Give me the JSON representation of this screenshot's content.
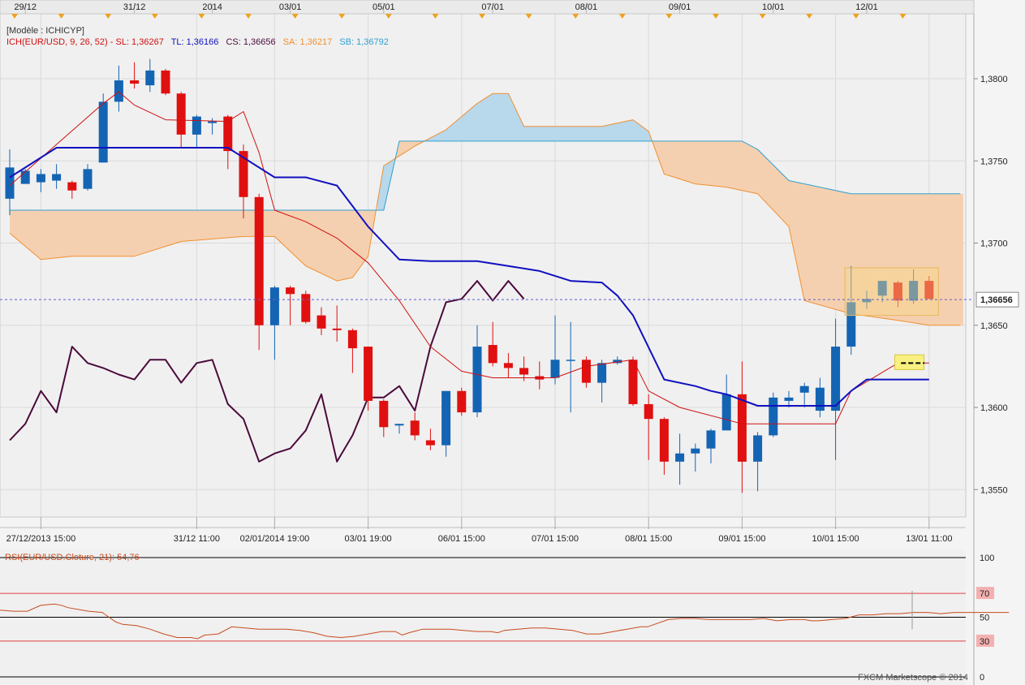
{
  "header": {
    "model_label": "[Modèle : ICHICYP]",
    "ich_prefix": "ICH(EUR/USD, 9, 26, 52) - ",
    "sl": "SL: 1,36267",
    "tl": "TL: 1,36166",
    "cs": "CS: 1,36656",
    "sa": "SA: 1,36217",
    "sb": "SB: 1,36792"
  },
  "rsi_label": "RSI(EUR/USD.Cloture, 21): 54,76",
  "copyright": "FXCM Marketscope © 2014",
  "colors": {
    "bull": "#1464b4",
    "bear": "#e01010",
    "tenkan": "#d01010",
    "kijun": "#1010c0",
    "chikou": "#4a0a3a",
    "senkou_a": "#f09030",
    "senkou_b": "#30a0d0",
    "cloud_bull": "#b8d8ec",
    "cloud_bear": "#f5d0b0",
    "rsi": "#c84b1e",
    "marker": "#f0a020"
  },
  "chart_data": {
    "type": "candlestick",
    "instrument": "EUR/USD",
    "price_axis": {
      "ticks": [
        "1,3800",
        "1,3750",
        "1,3700",
        "1,3650",
        "1,3600",
        "1,3550"
      ],
      "values": [
        1.38,
        1.375,
        1.37,
        1.365,
        1.36,
        1.355
      ],
      "current_price_label": "1,36656",
      "current_price": 1.36656
    },
    "time_axis_bottom": [
      {
        "label": "27/12/2013 15:00",
        "bar": 2
      },
      {
        "label": "31/12 11:00",
        "bar": 12
      },
      {
        "label": "02/01/2014 19:00",
        "bar": 17
      },
      {
        "label": "03/01 19:00",
        "bar": 23
      },
      {
        "label": "06/01 15:00",
        "bar": 29
      },
      {
        "label": "07/01 15:00",
        "bar": 35
      },
      {
        "label": "08/01 15:00",
        "bar": 41
      },
      {
        "label": "09/01 15:00",
        "bar": 47
      },
      {
        "label": "10/01 15:00",
        "bar": 53
      },
      {
        "label": "13/01 11:00",
        "bar": 59
      }
    ],
    "time_axis_top": [
      {
        "label": "29/12",
        "bar": 1
      },
      {
        "label": "31/12",
        "bar": 8
      },
      {
        "label": "2014",
        "bar": 13
      },
      {
        "label": "03/01",
        "bar": 18
      },
      {
        "label": "05/01",
        "bar": 24
      },
      {
        "label": "07/01",
        "bar": 31
      },
      {
        "label": "08/01",
        "bar": 37
      },
      {
        "label": "09/01",
        "bar": 43
      },
      {
        "label": "10/01",
        "bar": 49
      },
      {
        "label": "12/01",
        "bar": 55
      }
    ],
    "candles": [
      [
        1.3727,
        1.3746,
        1.3717,
        1.3757
      ],
      [
        1.3736,
        1.3744,
        1.3736,
        1.3745
      ],
      [
        1.3737,
        1.3742,
        1.3731,
        1.3745
      ],
      [
        1.3738,
        1.3742,
        1.3733,
        1.3748
      ],
      [
        1.3737,
        1.3732,
        1.3727,
        1.3738
      ],
      [
        1.3733,
        1.3745,
        1.3732,
        1.3748
      ],
      [
        1.3749,
        1.3786,
        1.3749,
        1.3791
      ],
      [
        1.3786,
        1.3799,
        1.378,
        1.3808
      ],
      [
        1.3799,
        1.3797,
        1.3794,
        1.381
      ],
      [
        1.3796,
        1.3805,
        1.3792,
        1.3812
      ],
      [
        1.3805,
        1.3791,
        1.379,
        1.3806
      ],
      [
        1.3791,
        1.3766,
        1.3758,
        1.3792
      ],
      [
        1.3766,
        1.3777,
        1.3758,
        1.3778
      ],
      [
        1.3773,
        1.3774,
        1.3766,
        1.3776
      ],
      [
        1.3777,
        1.3756,
        1.3745,
        1.3778
      ],
      [
        1.3756,
        1.3728,
        1.3715,
        1.376
      ],
      [
        1.3728,
        1.365,
        1.3635,
        1.373
      ],
      [
        1.365,
        1.3673,
        1.3629,
        1.3674
      ],
      [
        1.3673,
        1.3669,
        1.365,
        1.3674
      ],
      [
        1.3669,
        1.3652,
        1.3651,
        1.3671
      ],
      [
        1.3656,
        1.3648,
        1.3644,
        1.3661
      ],
      [
        1.3648,
        1.3647,
        1.364,
        1.3662
      ],
      [
        1.3647,
        1.3636,
        1.3621,
        1.3648
      ],
      [
        1.3637,
        1.3604,
        1.3598,
        1.3637
      ],
      [
        1.3604,
        1.3588,
        1.3582,
        1.3605
      ],
      [
        1.3589,
        1.359,
        1.3584,
        1.359
      ],
      [
        1.3592,
        1.3583,
        1.358,
        1.3597
      ],
      [
        1.358,
        1.3577,
        1.3574,
        1.3587
      ],
      [
        1.3577,
        1.361,
        1.357,
        1.361
      ],
      [
        1.361,
        1.3597,
        1.3595,
        1.3612
      ],
      [
        1.3597,
        1.3637,
        1.3594,
        1.365
      ],
      [
        1.3638,
        1.3627,
        1.3625,
        1.3652
      ],
      [
        1.3627,
        1.3624,
        1.3618,
        1.3633
      ],
      [
        1.3624,
        1.362,
        1.3616,
        1.3631
      ],
      [
        1.3619,
        1.3617,
        1.3611,
        1.3628
      ],
      [
        1.3618,
        1.3629,
        1.3614,
        1.3656
      ],
      [
        1.3629,
        1.3629,
        1.3597,
        1.3652
      ],
      [
        1.3629,
        1.3615,
        1.3612,
        1.3631
      ],
      [
        1.3615,
        1.3627,
        1.3603,
        1.3629
      ],
      [
        1.3627,
        1.3629,
        1.3626,
        1.3631
      ],
      [
        1.3629,
        1.3602,
        1.3601,
        1.3631
      ],
      [
        1.3602,
        1.3593,
        1.3568,
        1.3608
      ],
      [
        1.3593,
        1.3567,
        1.3559,
        1.3594
      ],
      [
        1.3567,
        1.3572,
        1.3553,
        1.3584
      ],
      [
        1.3572,
        1.3575,
        1.3561,
        1.3578
      ],
      [
        1.3575,
        1.3586,
        1.3566,
        1.3587
      ],
      [
        1.3586,
        1.3608,
        1.3587,
        1.362
      ],
      [
        1.3608,
        1.3567,
        1.3548,
        1.3628
      ],
      [
        1.3567,
        1.3583,
        1.3549,
        1.3585
      ],
      [
        1.3583,
        1.3606,
        1.3582,
        1.3609
      ],
      [
        1.3604,
        1.3606,
        1.36,
        1.361
      ],
      [
        1.3609,
        1.3613,
        1.36,
        1.3615
      ],
      [
        1.3598,
        1.3612,
        1.3594,
        1.3618
      ],
      [
        1.3598,
        1.3637,
        1.3568,
        1.3654
      ],
      [
        1.3637,
        1.3664,
        1.3632,
        1.3686
      ],
      [
        1.3664,
        1.3666,
        1.366,
        1.3671
      ],
      [
        1.3668,
        1.3677,
        1.3664,
        1.3677
      ],
      [
        1.3676,
        1.3665,
        1.3661,
        1.3677
      ],
      [
        1.3665,
        1.3677,
        1.3663,
        1.3684
      ],
      [
        1.3677,
        1.3666,
        1.3666,
        1.368
      ]
    ],
    "tenkan": [
      [
        0,
        1.3735
      ],
      [
        6,
        1.3785
      ],
      [
        7,
        1.3792
      ],
      [
        8,
        1.3784
      ],
      [
        10,
        1.3775
      ],
      [
        14,
        1.3774
      ],
      [
        15,
        1.378
      ],
      [
        16,
        1.3755
      ],
      [
        17,
        1.372
      ],
      [
        19,
        1.3713
      ],
      [
        21,
        1.3703
      ],
      [
        23,
        1.3688
      ],
      [
        25,
        1.3665
      ],
      [
        27,
        1.3637
      ],
      [
        29,
        1.3622
      ],
      [
        31,
        1.3618
      ],
      [
        35,
        1.3618
      ],
      [
        37,
        1.3625
      ],
      [
        40,
        1.3629
      ],
      [
        41,
        1.361
      ],
      [
        43,
        1.36
      ],
      [
        47,
        1.359
      ],
      [
        49,
        1.359
      ],
      [
        53,
        1.359
      ],
      [
        54,
        1.361
      ],
      [
        57,
        1.3627
      ],
      [
        59,
        1.3627
      ]
    ],
    "kijun": [
      [
        0,
        1.374
      ],
      [
        3,
        1.3758
      ],
      [
        14,
        1.3758
      ],
      [
        15,
        1.3752
      ],
      [
        17,
        1.374
      ],
      [
        19,
        1.374
      ],
      [
        21,
        1.3735
      ],
      [
        23,
        1.371
      ],
      [
        24,
        1.37
      ],
      [
        25,
        1.369
      ],
      [
        27,
        1.3689
      ],
      [
        30,
        1.3689
      ],
      [
        32,
        1.3686
      ],
      [
        34,
        1.3683
      ],
      [
        36,
        1.3677
      ],
      [
        38,
        1.3676
      ],
      [
        39,
        1.3668
      ],
      [
        40,
        1.3656
      ],
      [
        42,
        1.3617
      ],
      [
        44,
        1.3613
      ],
      [
        45,
        1.361
      ],
      [
        46,
        1.3608
      ],
      [
        48,
        1.3601
      ],
      [
        52,
        1.3601
      ],
      [
        53,
        1.3601
      ],
      [
        54,
        1.361
      ],
      [
        55,
        1.3617
      ],
      [
        59,
        1.3617
      ]
    ],
    "chikou": [
      [
        0,
        1.358
      ],
      [
        1,
        1.359
      ],
      [
        2,
        1.361
      ],
      [
        3,
        1.3597
      ],
      [
        4,
        1.3637
      ],
      [
        5,
        1.3627
      ],
      [
        6,
        1.3624
      ],
      [
        7,
        1.362
      ],
      [
        8,
        1.3617
      ],
      [
        9,
        1.3629
      ],
      [
        10,
        1.3629
      ],
      [
        11,
        1.3615
      ],
      [
        12,
        1.3627
      ],
      [
        13,
        1.3629
      ],
      [
        14,
        1.3602
      ],
      [
        15,
        1.3593
      ],
      [
        16,
        1.3567
      ],
      [
        17,
        1.3572
      ],
      [
        18,
        1.3575
      ],
      [
        19,
        1.3586
      ],
      [
        20,
        1.3608
      ],
      [
        21,
        1.3567
      ],
      [
        22,
        1.3583
      ],
      [
        23,
        1.3606
      ],
      [
        24,
        1.3606
      ],
      [
        25,
        1.3613
      ],
      [
        26,
        1.3598
      ],
      [
        27,
        1.3637
      ],
      [
        28,
        1.3664
      ],
      [
        29,
        1.3666
      ],
      [
        30,
        1.3677
      ],
      [
        31,
        1.3665
      ],
      [
        32,
        1.3677
      ],
      [
        33,
        1.3666
      ]
    ],
    "senkou_a": [
      [
        0,
        1.3706
      ],
      [
        2,
        1.369
      ],
      [
        4,
        1.3692
      ],
      [
        8,
        1.3692
      ],
      [
        11,
        1.3701
      ],
      [
        15,
        1.3704
      ],
      [
        17,
        1.3704
      ],
      [
        19,
        1.3686
      ],
      [
        21,
        1.3677
      ],
      [
        22,
        1.3679
      ],
      [
        23,
        1.3692
      ],
      [
        24,
        1.3747
      ],
      [
        26,
        1.3759
      ],
      [
        28,
        1.3769
      ],
      [
        30,
        1.3785
      ],
      [
        31,
        1.3791
      ],
      [
        32,
        1.3791
      ],
      [
        33,
        1.3771
      ],
      [
        38,
        1.3771
      ],
      [
        40,
        1.3775
      ],
      [
        41,
        1.3768
      ],
      [
        42,
        1.3742
      ],
      [
        44,
        1.3736
      ],
      [
        46,
        1.3734
      ],
      [
        48,
        1.373
      ],
      [
        50,
        1.371
      ],
      [
        51,
        1.3665
      ],
      [
        54,
        1.3657
      ],
      [
        57,
        1.3653
      ],
      [
        59,
        1.365
      ],
      [
        61,
        1.365
      ]
    ],
    "senkou_b": [
      [
        0,
        1.372
      ],
      [
        24,
        1.372
      ],
      [
        25,
        1.3762
      ],
      [
        47,
        1.3762
      ],
      [
        48,
        1.3757
      ],
      [
        50,
        1.3738
      ],
      [
        53,
        1.3732
      ],
      [
        54,
        1.373
      ],
      [
        61,
        1.373
      ]
    ],
    "rsi": {
      "ticks": [
        "100",
        "70",
        "50",
        "30",
        "0"
      ],
      "levels": [
        100,
        70,
        50,
        30,
        0
      ],
      "values": [
        [
          0,
          56
        ],
        [
          2,
          55
        ],
        [
          4,
          55
        ],
        [
          6,
          60
        ],
        [
          8,
          61
        ],
        [
          9,
          60
        ],
        [
          10,
          58
        ],
        [
          13,
          55
        ],
        [
          15,
          54
        ],
        [
          17,
          46
        ],
        [
          18,
          44
        ],
        [
          20,
          43
        ],
        [
          22,
          40
        ],
        [
          24,
          36
        ],
        [
          26,
          33
        ],
        [
          28,
          33
        ],
        [
          29,
          32
        ],
        [
          30,
          35
        ],
        [
          32,
          36
        ],
        [
          34,
          42
        ],
        [
          36,
          41
        ],
        [
          38,
          40
        ],
        [
          40,
          40
        ],
        [
          42,
          40
        ],
        [
          44,
          39
        ],
        [
          46,
          37
        ],
        [
          48,
          34
        ],
        [
          50,
          33
        ],
        [
          52,
          34
        ],
        [
          54,
          36
        ],
        [
          56,
          38
        ],
        [
          58,
          38
        ],
        [
          59,
          35
        ],
        [
          60,
          37
        ],
        [
          62,
          40
        ],
        [
          64,
          40
        ],
        [
          66,
          40
        ],
        [
          68,
          39
        ],
        [
          70,
          38
        ],
        [
          72,
          38
        ],
        [
          73,
          37
        ],
        [
          74,
          39
        ],
        [
          76,
          40
        ],
        [
          78,
          41
        ],
        [
          80,
          41
        ],
        [
          82,
          40
        ],
        [
          84,
          39
        ],
        [
          86,
          36
        ],
        [
          88,
          36
        ],
        [
          90,
          38
        ],
        [
          92,
          40
        ],
        [
          94,
          42
        ],
        [
          95,
          42
        ],
        [
          96,
          44
        ],
        [
          98,
          48
        ],
        [
          100,
          49
        ],
        [
          102,
          49
        ],
        [
          104,
          48
        ],
        [
          106,
          48
        ],
        [
          108,
          48
        ],
        [
          110,
          48
        ],
        [
          112,
          49
        ],
        [
          114,
          47
        ],
        [
          116,
          48
        ],
        [
          118,
          48
        ],
        [
          119,
          47
        ],
        [
          120,
          47
        ],
        [
          122,
          48
        ],
        [
          124,
          49
        ],
        [
          126,
          52
        ],
        [
          128,
          52
        ],
        [
          130,
          53
        ],
        [
          132,
          53
        ],
        [
          134,
          54
        ],
        [
          136,
          54
        ],
        [
          138,
          53
        ],
        [
          140,
          54
        ],
        [
          142,
          54
        ],
        [
          144,
          54
        ],
        [
          146,
          54
        ],
        [
          148,
          54
        ]
      ]
    }
  }
}
